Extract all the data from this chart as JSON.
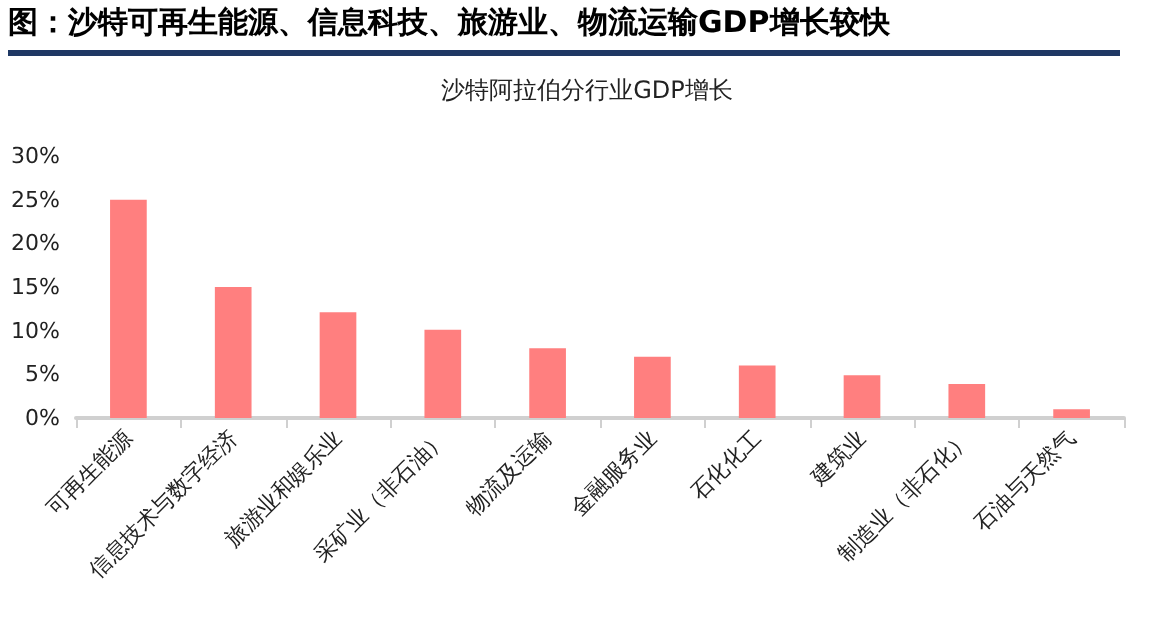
{
  "chart_data": {
    "type": "bar",
    "title": "图：沙特可再生能源、信息科技、旅游业、物流运输GDP增长较快",
    "subtitle": "沙特阿拉伯分行业GDP增长",
    "categories": [
      "可再生能源",
      "信息技术与数字经济",
      "旅游业和娱乐业",
      "采矿业（非石油）",
      "物流及运输",
      "金融服务业",
      "石化化工",
      "建筑业",
      "制造业（非石化）",
      "石油与天然气"
    ],
    "values": [
      25,
      15,
      12.1,
      10.1,
      8,
      7,
      6,
      4.9,
      3.9,
      1
    ],
    "color": "#ff7f7f",
    "ylim": [
      0,
      30
    ],
    "yticks": [
      {
        "value": 0,
        "label": "0%"
      },
      {
        "value": 5,
        "label": "5%"
      },
      {
        "value": 10,
        "label": "10%"
      },
      {
        "value": 15,
        "label": "15%"
      },
      {
        "value": 20,
        "label": "20%"
      },
      {
        "value": 25,
        "label": "25%"
      },
      {
        "value": 30,
        "label": "30%"
      }
    ],
    "grid": false
  }
}
